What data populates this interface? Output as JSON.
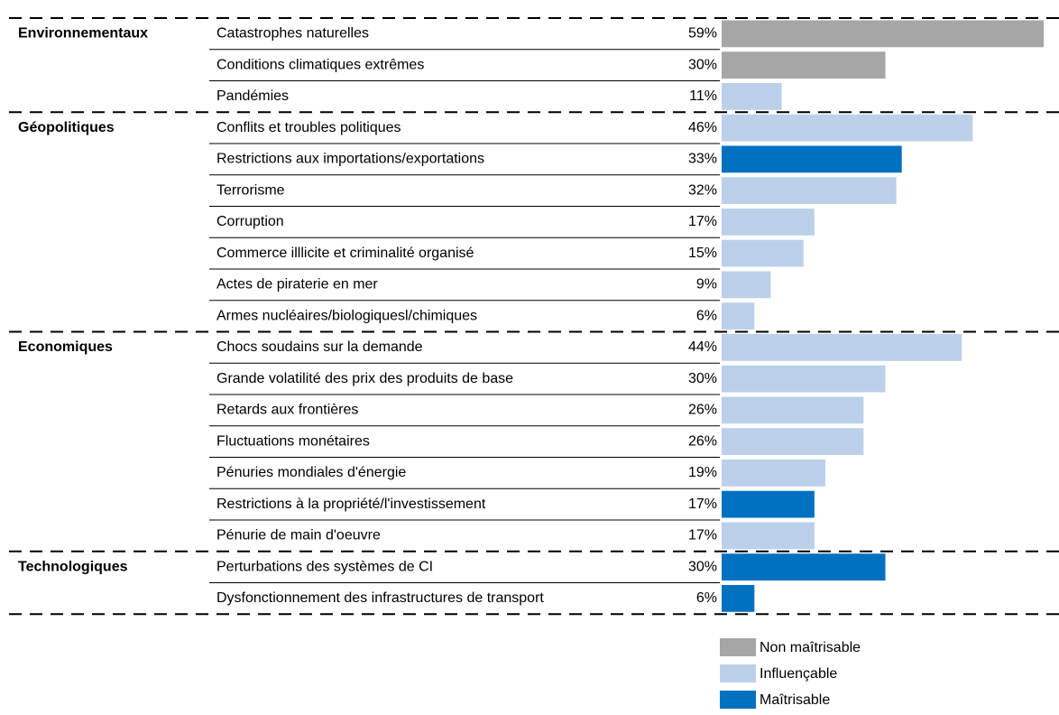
{
  "chart_data": {
    "type": "bar",
    "orientation": "horizontal",
    "groups": [
      "Environnementaux",
      null,
      null,
      "Géopolitiques",
      null,
      null,
      null,
      null,
      null,
      null,
      "Economiques",
      null,
      null,
      null,
      null,
      null,
      null,
      "Technologiques",
      null
    ],
    "categories": [
      "Catastrophes naturelles",
      "Conditions climatiques extrêmes",
      "Pandémies",
      "Conflits et troubles politiques",
      "Restrictions aux importations/exportations",
      "Terrorisme",
      "Corruption",
      "Commerce illlicite et criminalité organisé",
      "Actes de piraterie en mer",
      "Armes nucléaires/biologiquesl/chimiques",
      "Chocs soudains sur la demande",
      "Grande volatilité des prix des produits de base",
      "Retards aux frontières",
      "Fluctuations monétaires",
      "Pénuries mondiales d'énergie",
      "Restrictions à la propriété/l'investissement",
      "Pénurie de main d'oeuvre",
      "Perturbations des systèmes de CI",
      "Dysfonctionnement des infrastructures de transport"
    ],
    "values": [
      59,
      30,
      11,
      46,
      33,
      32,
      17,
      15,
      9,
      6,
      44,
      30,
      26,
      26,
      19,
      17,
      17,
      30,
      6
    ],
    "value_labels": [
      "59%",
      "30%",
      "11%",
      "46%",
      "33%",
      "32%",
      "17%",
      "15%",
      "9%",
      "6%",
      "44%",
      "30%",
      "26%",
      "26%",
      "19%",
      "17%",
      "17%",
      "30%",
      "6%"
    ],
    "colors": [
      "#a6a6a6",
      "#a6a6a6",
      "#bcd0ea",
      "#bcd0ea",
      "#0070c0",
      "#bcd0ea",
      "#bcd0ea",
      "#bcd0ea",
      "#bcd0ea",
      "#bcd0ea",
      "#bcd0ea",
      "#bcd0ea",
      "#bcd0ea",
      "#bcd0ea",
      "#bcd0ea",
      "#0070c0",
      "#bcd0ea",
      "#0070c0",
      "#0070c0"
    ],
    "legend": [
      {
        "name": "Non maîtrisable",
        "color": "#a6a6a6"
      },
      {
        "name": "Influençable",
        "color": "#bcd0ea"
      },
      {
        "name": "Maîtrisable",
        "color": "#0070c0"
      }
    ]
  }
}
